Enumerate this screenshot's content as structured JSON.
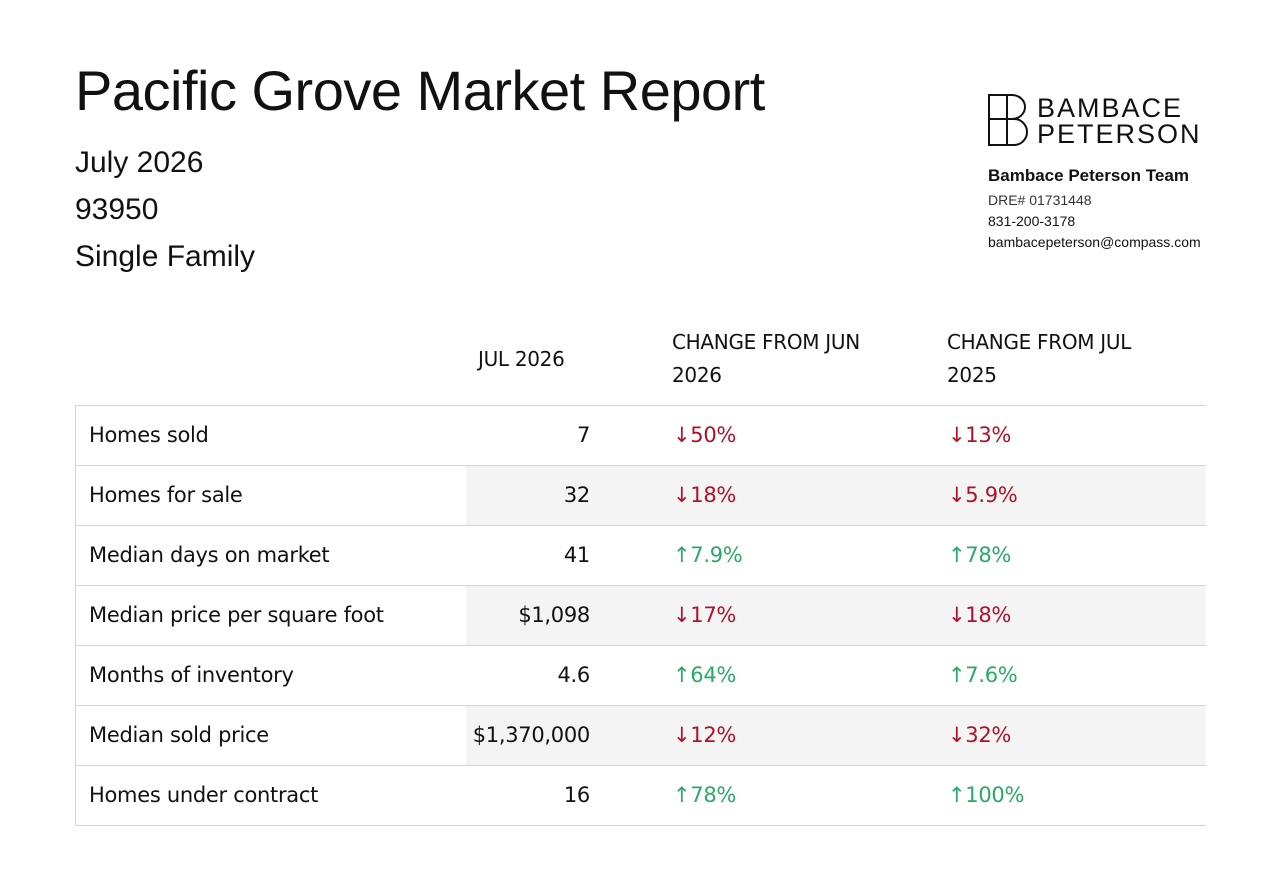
{
  "header": {
    "title": "Pacific Grove Market Report",
    "month": "July 2026",
    "zip": "93950",
    "property_type": "Single Family"
  },
  "brand": {
    "logo_line1": "BAMBACE",
    "logo_line2": "PETERSON",
    "team_name": "Bambace Peterson Team",
    "dre": "DRE# 01731448",
    "phone": "831-200-3178",
    "email": "bambacepeterson@compass.com"
  },
  "table": {
    "columns": [
      "JUL 2026",
      "CHANGE FROM JUN 2026",
      "CHANGE FROM JUL 2025"
    ],
    "rows": [
      {
        "label": "Homes sold",
        "value": "7",
        "chg_prev_month": "↓50%",
        "chg_prev_month_dir": "down",
        "chg_prev_year": "↓13%",
        "chg_prev_year_dir": "down"
      },
      {
        "label": "Homes for sale",
        "value": "32",
        "chg_prev_month": "↓18%",
        "chg_prev_month_dir": "down",
        "chg_prev_year": "↓5.9%",
        "chg_prev_year_dir": "down"
      },
      {
        "label": "Median days on market",
        "value": "41",
        "chg_prev_month": "↑7.9%",
        "chg_prev_month_dir": "up",
        "chg_prev_year": "↑78%",
        "chg_prev_year_dir": "up"
      },
      {
        "label": "Median price per square foot",
        "value": "$1,098",
        "chg_prev_month": "↓17%",
        "chg_prev_month_dir": "down",
        "chg_prev_year": "↓18%",
        "chg_prev_year_dir": "down"
      },
      {
        "label": "Months of inventory",
        "value": "4.6",
        "chg_prev_month": "↑64%",
        "chg_prev_month_dir": "up",
        "chg_prev_year": "↑7.6%",
        "chg_prev_year_dir": "up"
      },
      {
        "label": "Median sold price",
        "value": "$1,370,000",
        "chg_prev_month": "↓12%",
        "chg_prev_month_dir": "down",
        "chg_prev_year": "↓32%",
        "chg_prev_year_dir": "down"
      },
      {
        "label": "Homes under contract",
        "value": "16",
        "chg_prev_month": "↑78%",
        "chg_prev_month_dir": "up",
        "chg_prev_year": "↑100%",
        "chg_prev_year_dir": "up"
      }
    ]
  },
  "colors": {
    "down": "#b0112a",
    "up": "#2aa866",
    "shade": "#f4f4f4",
    "border": "#d4d4d4"
  }
}
